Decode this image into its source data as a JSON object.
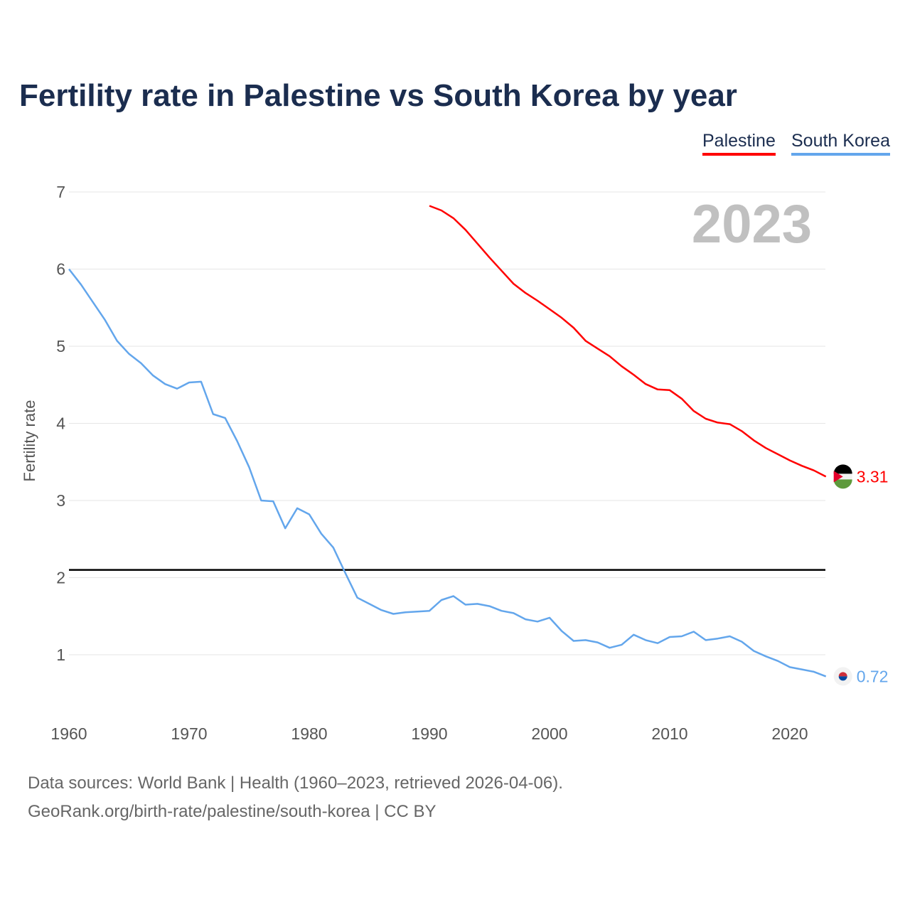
{
  "chart_data": {
    "type": "line",
    "title": "Fertility rate in Palestine vs South Korea by year",
    "ylabel": "Fertility rate",
    "xlabel": "",
    "xlim": [
      1960,
      2023
    ],
    "ylim": [
      0.5,
      7
    ],
    "x_ticks": [
      "1960",
      "1970",
      "1980",
      "1990",
      "2000",
      "2010",
      "2020"
    ],
    "y_ticks": [
      "1",
      "2",
      "3",
      "4",
      "5",
      "6",
      "7"
    ],
    "year_label": "2023",
    "reference_line": 2.1,
    "legend_position": "top-right",
    "series": [
      {
        "name": "Palestine",
        "color": "#ff0000",
        "start_year": 1990,
        "end_label": "3.31",
        "values": [
          6.82,
          6.76,
          6.66,
          6.51,
          6.33,
          6.15,
          5.98,
          5.81,
          5.69,
          5.59,
          5.48,
          5.37,
          5.24,
          5.07,
          4.97,
          4.87,
          4.74,
          4.63,
          4.51,
          4.44,
          4.43,
          4.32,
          4.16,
          4.06,
          4.01,
          3.99,
          3.9,
          3.78,
          3.68,
          3.6,
          3.52,
          3.45,
          3.39,
          3.31
        ]
      },
      {
        "name": "South Korea",
        "color": "#63a6ec",
        "start_year": 1960,
        "end_label": "0.72",
        "values": [
          6.0,
          5.8,
          5.57,
          5.34,
          5.07,
          4.9,
          4.78,
          4.62,
          4.51,
          4.45,
          4.53,
          4.54,
          4.12,
          4.07,
          3.77,
          3.43,
          3.0,
          2.99,
          2.64,
          2.9,
          2.82,
          2.57,
          2.39,
          2.06,
          1.74,
          1.66,
          1.58,
          1.53,
          1.55,
          1.56,
          1.57,
          1.71,
          1.76,
          1.65,
          1.66,
          1.63,
          1.57,
          1.54,
          1.46,
          1.43,
          1.48,
          1.31,
          1.18,
          1.19,
          1.16,
          1.09,
          1.13,
          1.26,
          1.19,
          1.15,
          1.23,
          1.24,
          1.3,
          1.19,
          1.21,
          1.24,
          1.17,
          1.05,
          0.98,
          0.92,
          0.84,
          0.81,
          0.78,
          0.72
        ]
      }
    ]
  },
  "footer": {
    "line1": "Data sources: World Bank | Health (1960–2023, retrieved 2026-04-06).",
    "line2": "GeoRank.org/birth-rate/palestine/south-korea | CC BY"
  }
}
